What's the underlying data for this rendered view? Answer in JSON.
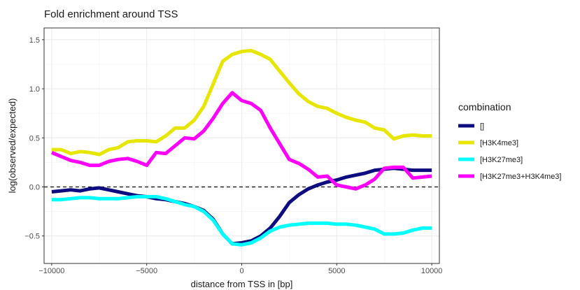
{
  "chart_data": {
    "type": "line",
    "title": "Fold enrichment around TSS",
    "xlabel": "distance from TSS in [bp]",
    "ylabel": "log(observed/expected)",
    "xlim": [
      -10400,
      10400
    ],
    "ylim": [
      -0.78,
      1.62
    ],
    "xticks": [
      -10000,
      -5000,
      0,
      5000,
      10000
    ],
    "xtick_labels": [
      "−10000",
      "−5000",
      "0",
      "5000",
      "10000"
    ],
    "yticks": [
      -0.5,
      0.0,
      0.5,
      1.0,
      1.5
    ],
    "ytick_labels": [
      "−0.5",
      "0.0",
      "0.5",
      "1.0",
      "1.5"
    ],
    "grid": true,
    "reference_line": {
      "y": 0,
      "style": "dashed"
    },
    "legend": {
      "title": "combination",
      "placement": "right"
    },
    "x": [
      -10000,
      -9500,
      -9000,
      -8500,
      -8000,
      -7500,
      -7000,
      -6500,
      -6000,
      -5500,
      -5000,
      -4500,
      -4000,
      -3500,
      -3000,
      -2500,
      -2000,
      -1500,
      -1000,
      -500,
      0,
      500,
      1000,
      1500,
      2000,
      2500,
      3000,
      3500,
      4000,
      4500,
      5000,
      5500,
      6000,
      6500,
      7000,
      7500,
      8000,
      8500,
      9000,
      9500,
      10000
    ],
    "series": [
      {
        "name": "[]",
        "color": "#0d0d80",
        "values": [
          -0.05,
          -0.04,
          -0.03,
          -0.04,
          -0.02,
          -0.01,
          -0.03,
          -0.05,
          -0.07,
          -0.09,
          -0.1,
          -0.12,
          -0.13,
          -0.15,
          -0.17,
          -0.2,
          -0.24,
          -0.33,
          -0.48,
          -0.58,
          -0.57,
          -0.55,
          -0.5,
          -0.42,
          -0.3,
          -0.16,
          -0.08,
          -0.02,
          0.02,
          0.05,
          0.07,
          0.1,
          0.12,
          0.14,
          0.17,
          0.18,
          0.19,
          0.18,
          0.17,
          0.17,
          0.17
        ]
      },
      {
        "name": "[H3K4me3]",
        "color": "#e6e600",
        "values": [
          0.38,
          0.38,
          0.34,
          0.36,
          0.35,
          0.33,
          0.38,
          0.4,
          0.46,
          0.47,
          0.47,
          0.46,
          0.52,
          0.6,
          0.6,
          0.68,
          0.82,
          1.05,
          1.28,
          1.35,
          1.38,
          1.39,
          1.35,
          1.3,
          1.18,
          1.06,
          0.95,
          0.87,
          0.82,
          0.8,
          0.75,
          0.71,
          0.68,
          0.66,
          0.6,
          0.58,
          0.49,
          0.52,
          0.53,
          0.52,
          0.52
        ]
      },
      {
        "name": "[H3K27me3]",
        "color": "#00ffff",
        "values": [
          -0.13,
          -0.13,
          -0.12,
          -0.11,
          -0.11,
          -0.12,
          -0.12,
          -0.12,
          -0.11,
          -0.1,
          -0.1,
          -0.1,
          -0.12,
          -0.15,
          -0.18,
          -0.2,
          -0.25,
          -0.34,
          -0.48,
          -0.58,
          -0.59,
          -0.57,
          -0.52,
          -0.45,
          -0.41,
          -0.39,
          -0.38,
          -0.37,
          -0.37,
          -0.37,
          -0.38,
          -0.38,
          -0.39,
          -0.41,
          -0.43,
          -0.48,
          -0.48,
          -0.47,
          -0.44,
          -0.42,
          -0.42
        ]
      },
      {
        "name": "[H3K27me3+H3K4me3]",
        "color": "#ff00ff",
        "values": [
          0.35,
          0.31,
          0.27,
          0.25,
          0.22,
          0.22,
          0.26,
          0.28,
          0.29,
          0.26,
          0.22,
          0.35,
          0.34,
          0.42,
          0.5,
          0.49,
          0.57,
          0.7,
          0.85,
          0.96,
          0.88,
          0.85,
          0.78,
          0.6,
          0.44,
          0.28,
          0.24,
          0.18,
          0.1,
          0.11,
          0.02,
          0.0,
          -0.02,
          0.02,
          0.08,
          0.19,
          0.2,
          0.2,
          0.09,
          0.1,
          0.11
        ]
      }
    ]
  }
}
